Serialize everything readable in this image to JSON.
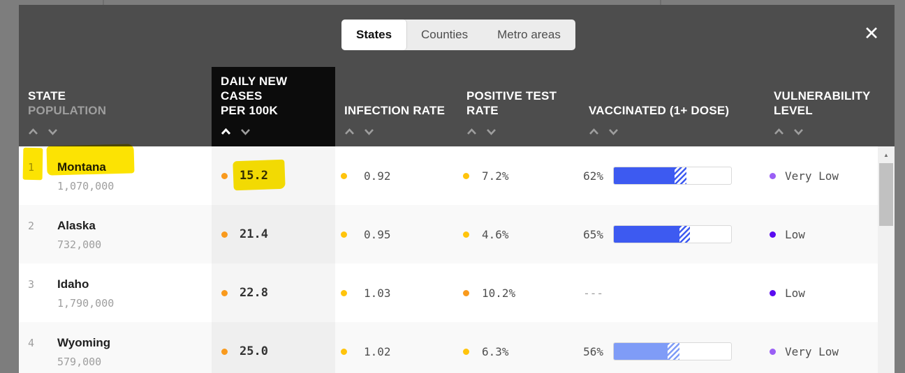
{
  "tabs": {
    "items": [
      {
        "label": "States",
        "active": true
      },
      {
        "label": "Counties",
        "active": false
      },
      {
        "label": "Metro areas",
        "active": false
      }
    ]
  },
  "modal": {
    "close_icon": "✕"
  },
  "scrollbar": {
    "up_arrow": "▲"
  },
  "colors": {
    "highlight": "#fce303",
    "orange": "#f99a1d",
    "yellow": "#ffc40c",
    "bar_blue": "#3d5af1",
    "bar_light_blue": "#7f9cf7",
    "purple_low": "#5a0cf0",
    "purple_very_low": "#9a5ff5"
  },
  "table": {
    "columns": [
      {
        "title": "STATE",
        "subtitle": "POPULATION"
      },
      {
        "title": "DAILY NEW CASES",
        "subtitle": "PER 100K",
        "sorted": true,
        "sort_dir": "asc"
      },
      {
        "title": "INFECTION RATE"
      },
      {
        "title": "POSITIVE TEST",
        "subtitle": "RATE"
      },
      {
        "title": "VACCINATED (1+ DOSE)"
      },
      {
        "title": "VULNERABILITY",
        "subtitle": "LEVEL"
      }
    ],
    "rows": [
      {
        "rank": "1",
        "state": "Montana",
        "population": "1,070,000",
        "state_dot": "#f99a1d",
        "daily_new_cases": "15.2",
        "daily_dot": "#f99a1d",
        "infection_rate": "0.92",
        "infection_dot": "#ffc40c",
        "positive_test_rate": "7.2%",
        "positive_dot": "#ffc40c",
        "vaccinated": "62%",
        "bar": {
          "solid_pct": 52,
          "total_pct": 62,
          "color": "#3d5af1"
        },
        "vulnerability": "Very Low",
        "vulnerability_dot": "#9a5ff5",
        "annotated": true
      },
      {
        "rank": "2",
        "state": "Alaska",
        "population": "732,000",
        "state_dot": "#f99a1d",
        "daily_new_cases": "21.4",
        "daily_dot": "#f99a1d",
        "infection_rate": "0.95",
        "infection_dot": "#ffc40c",
        "positive_test_rate": "4.6%",
        "positive_dot": "#ffc40c",
        "vaccinated": "65%",
        "bar": {
          "solid_pct": 56,
          "total_pct": 65,
          "color": "#3d5af1"
        },
        "vulnerability": "Low",
        "vulnerability_dot": "#5a0cf0",
        "annotated": false
      },
      {
        "rank": "3",
        "state": "Idaho",
        "population": "1,790,000",
        "state_dot": "#f99a1d",
        "daily_new_cases": "22.8",
        "daily_dot": "#f99a1d",
        "infection_rate": "1.03",
        "infection_dot": "#ffc40c",
        "positive_test_rate": "10.2%",
        "positive_dot": "#f99a1d",
        "vaccinated": "---",
        "vulnerability": "Low",
        "vulnerability_dot": "#5a0cf0",
        "annotated": false
      },
      {
        "rank": "4",
        "state": "Wyoming",
        "population": "579,000",
        "state_dot": "#f99a1d",
        "daily_new_cases": "25.0",
        "daily_dot": "#f99a1d",
        "infection_rate": "1.02",
        "infection_dot": "#ffc40c",
        "positive_test_rate": "6.3%",
        "positive_dot": "#ffc40c",
        "vaccinated": "56%",
        "bar": {
          "solid_pct": 46,
          "total_pct": 56,
          "color": "#7f9cf7"
        },
        "vulnerability": "Very Low",
        "vulnerability_dot": "#9a5ff5",
        "annotated": false
      }
    ]
  }
}
